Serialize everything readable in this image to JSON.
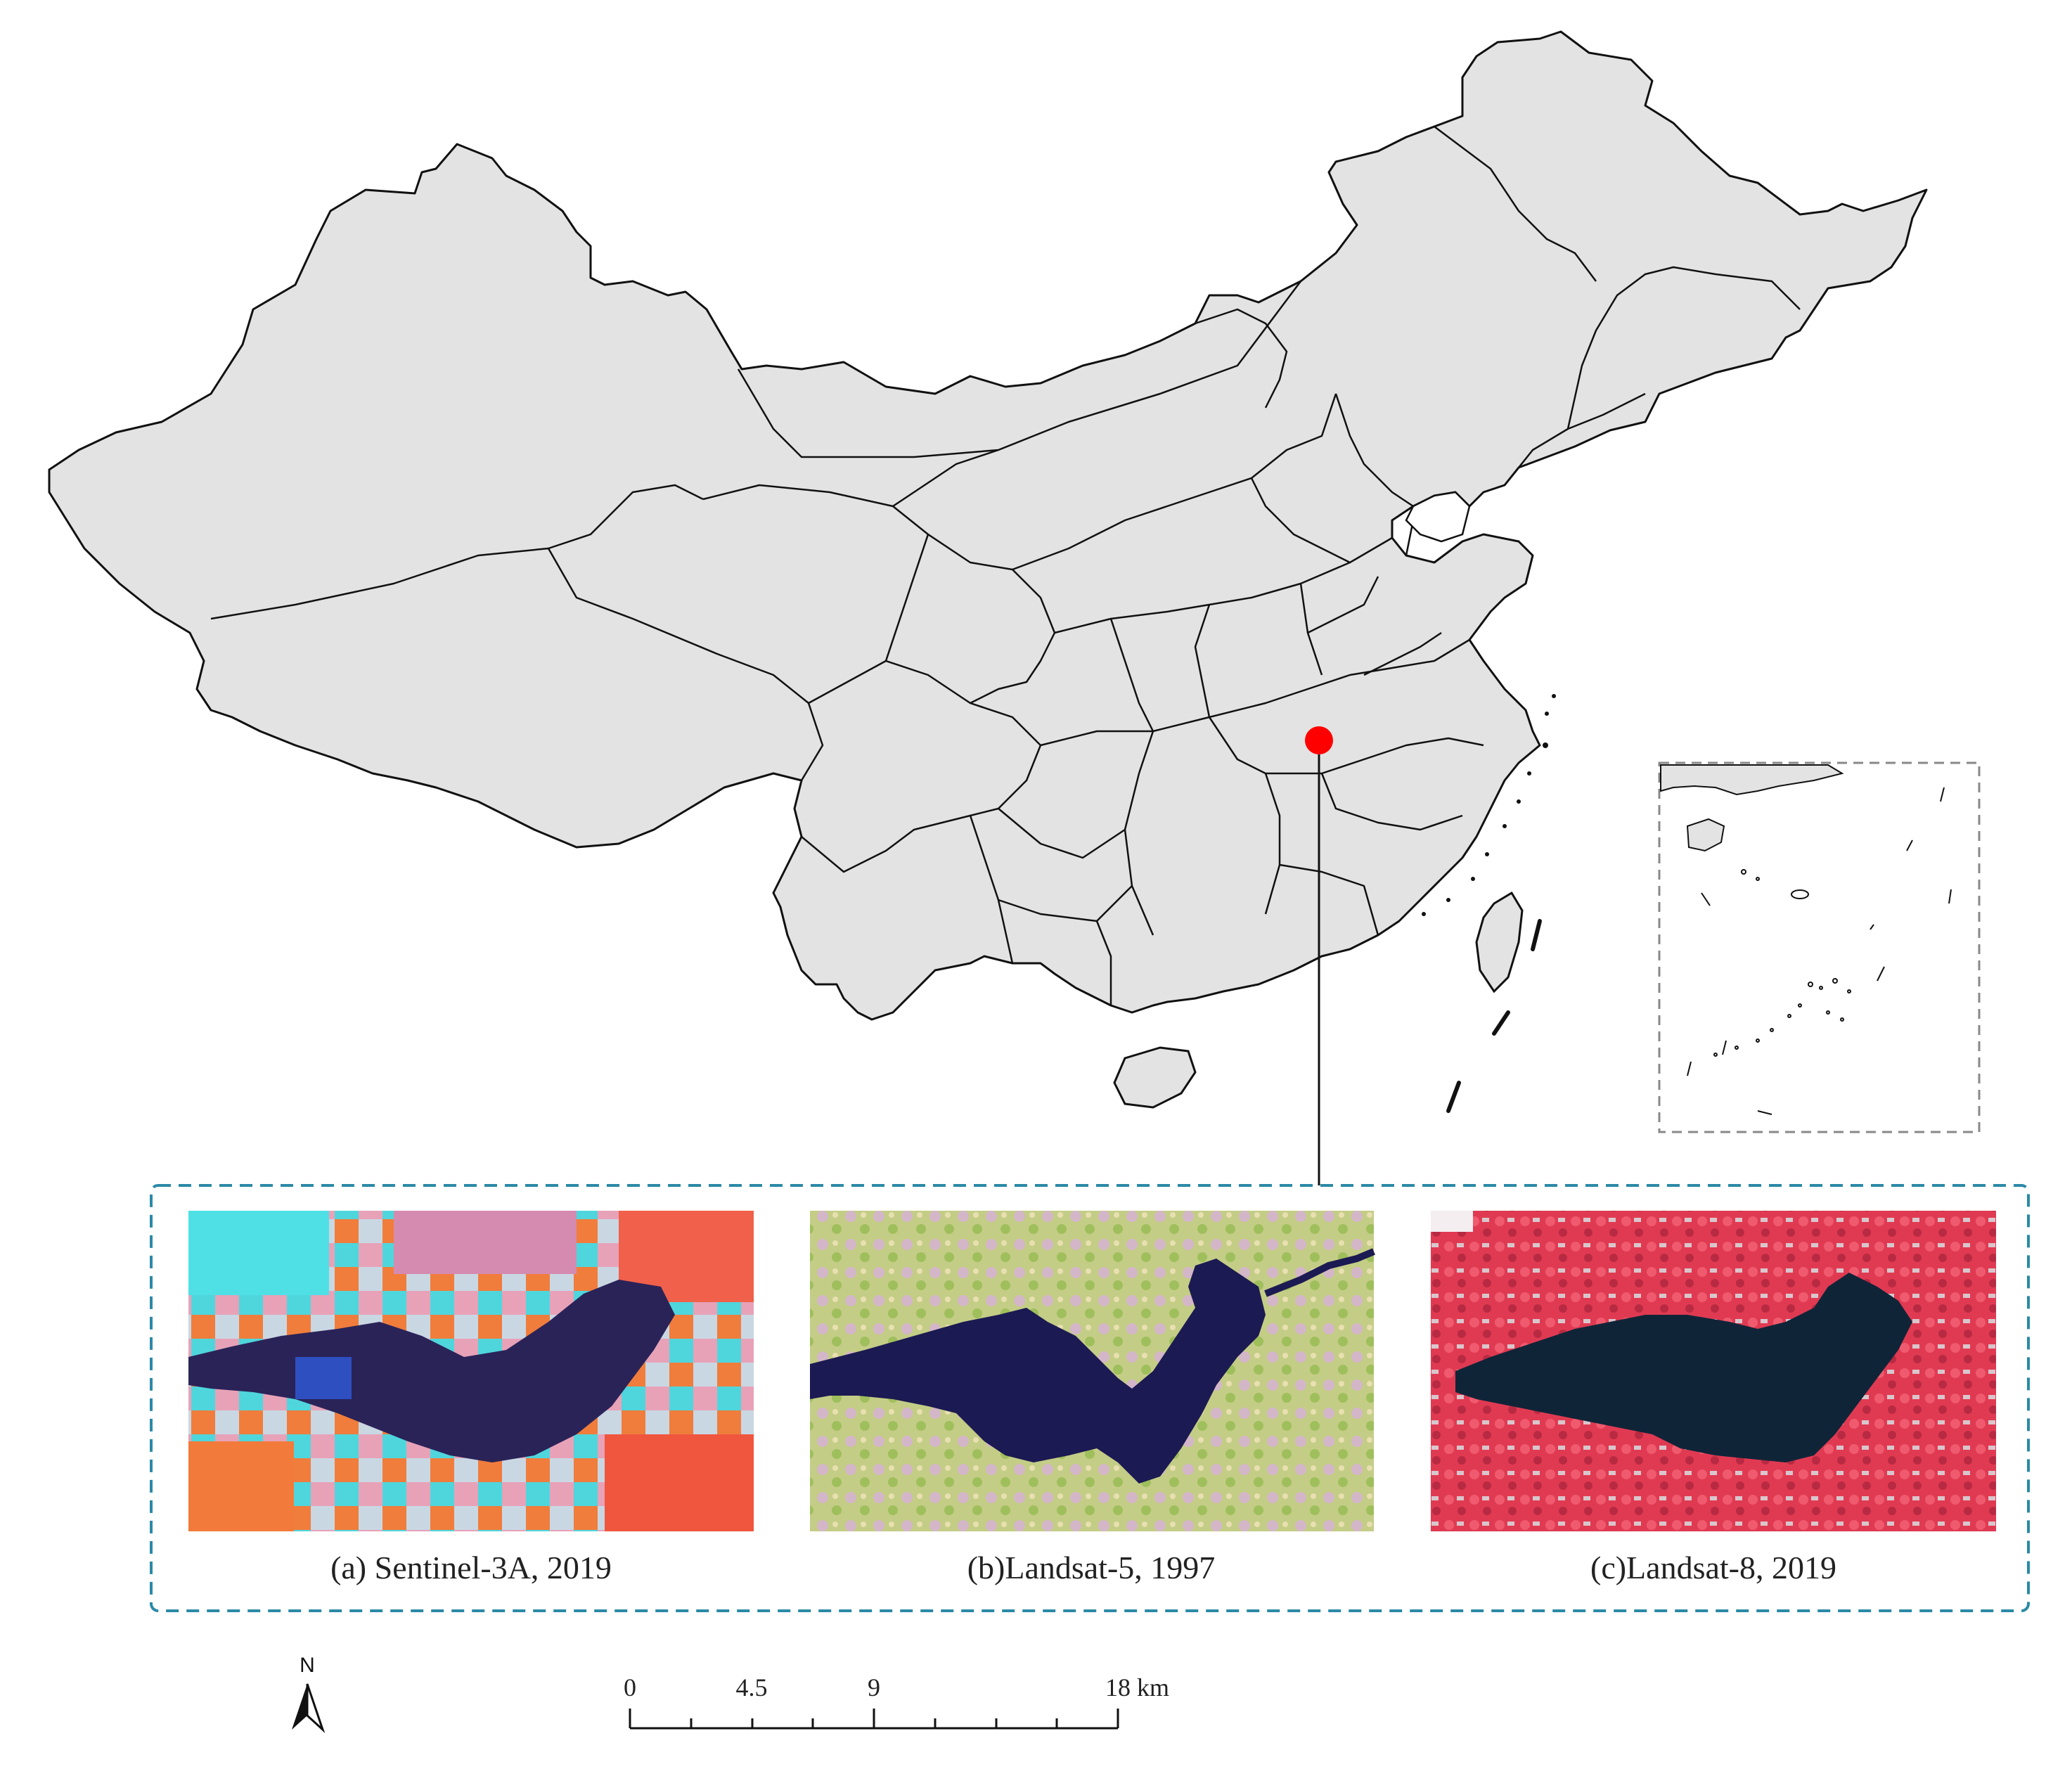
{
  "panels": [
    {
      "caption": "(a) Sentinel-3A, 2019"
    },
    {
      "caption": "(b)Landsat-5, 1997"
    },
    {
      "caption": "(c)Landsat-8, 2019"
    }
  ],
  "scale_bar": {
    "labels": [
      "0",
      "4.5",
      "9",
      "18 km"
    ]
  },
  "north_arrow": {
    "label": "N"
  },
  "colors": {
    "land": "#e3e3e3",
    "border": "#111111",
    "study_site": "#ff0000",
    "inset_frame": "#2b8aa6",
    "south_sea_frame": "#888888",
    "sentinel_water": "#2a2358",
    "landsat5_water": "#1c1a52",
    "landsat8_water": "#102438",
    "landsat8_land": "#e0364f"
  }
}
